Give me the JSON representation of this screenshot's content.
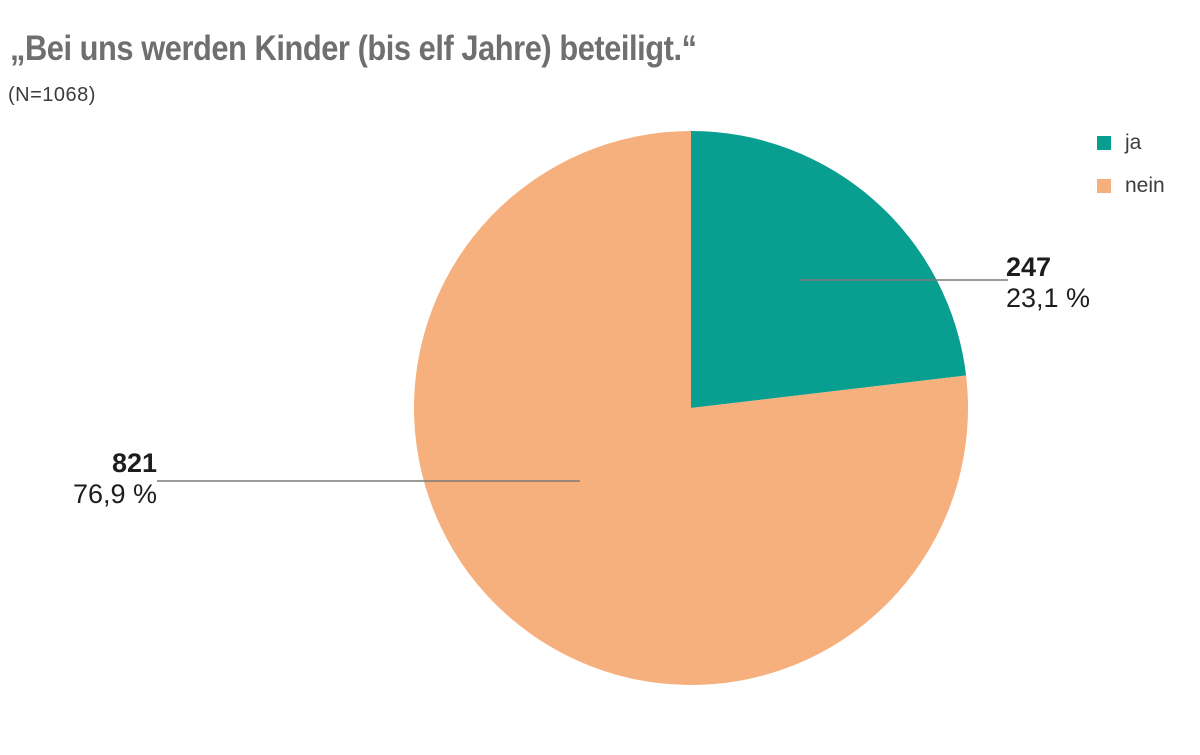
{
  "chart_data": {
    "type": "pie",
    "title": "„Bei uns werden Kinder (bis elf Jahre) beteiligt.“",
    "subtitle": "(N=1068)",
    "total_n": 1068,
    "start_angle_deg": 0,
    "direction": "clockwise",
    "legend_position": "top-right",
    "series": [
      {
        "name": "ja",
        "value": 247,
        "pct_label": "23,1 %",
        "color": "#089e90"
      },
      {
        "name": "nein",
        "value": 821,
        "pct_label": "76,9 %",
        "color": "#f6b07d"
      }
    ]
  },
  "colors": {
    "leader_line": "#7a7a7a",
    "title": "#6f6f6e",
    "subtitle": "#3c3c3b",
    "label_text": "#1d1d1b"
  }
}
